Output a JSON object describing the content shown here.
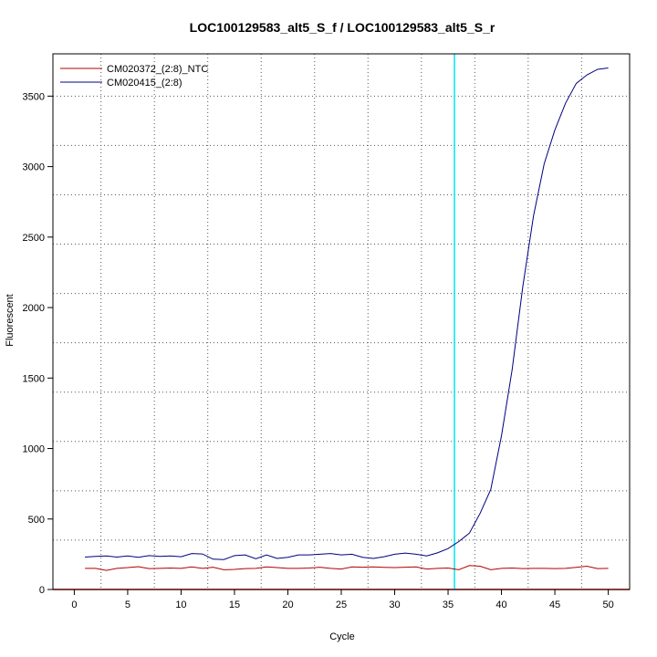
{
  "chart_data": {
    "type": "line",
    "title": "LOC100129583_alt5_S_f / LOC100129583_alt5_S_r",
    "xlabel": "Cycle",
    "ylabel": "Fluorescent",
    "xlim": [
      -2,
      52
    ],
    "ylim": [
      0,
      3800
    ],
    "x_ticks": [
      0,
      5,
      10,
      15,
      20,
      25,
      30,
      35,
      40,
      45,
      50
    ],
    "y_ticks": [
      0,
      500,
      1000,
      1500,
      2000,
      2500,
      3000,
      3500
    ],
    "x_grid": [
      2.5,
      7.5,
      12.5,
      17.5,
      22.5,
      27.5,
      32.5,
      37.5,
      42.5,
      47.5
    ],
    "y_grid": [
      350,
      700,
      1050,
      1400,
      1750,
      2100,
      2450,
      2800,
      3150,
      3500
    ],
    "grid": true,
    "legend_position": "top-left",
    "threshold": {
      "x": 35.6,
      "color": "#00e5ee"
    },
    "baseline": {
      "y": 0,
      "color": "#ff0000"
    },
    "x": [
      1,
      2,
      3,
      4,
      5,
      6,
      7,
      8,
      9,
      10,
      11,
      12,
      13,
      14,
      15,
      16,
      17,
      18,
      19,
      20,
      21,
      22,
      23,
      24,
      25,
      26,
      27,
      28,
      29,
      30,
      31,
      32,
      33,
      34,
      35,
      36,
      37,
      38,
      39,
      40,
      41,
      42,
      43,
      44,
      45,
      46,
      47,
      48,
      49,
      50
    ],
    "series": [
      {
        "name": "CM020372_(2:8)_NTC",
        "color": "#b30000",
        "values": [
          150,
          150,
          135,
          150,
          155,
          162,
          148,
          150,
          152,
          150,
          160,
          150,
          158,
          140,
          142,
          148,
          150,
          160,
          155,
          150,
          150,
          152,
          158,
          150,
          145,
          160,
          158,
          160,
          157,
          155,
          158,
          160,
          145,
          150,
          152,
          140,
          170,
          165,
          140,
          150,
          152,
          148,
          150,
          150,
          148,
          150,
          157,
          165,
          148,
          150
        ]
      },
      {
        "name": "CM020415_(2:8)",
        "color": "#000080",
        "values": [
          230,
          235,
          238,
          230,
          238,
          228,
          240,
          235,
          238,
          232,
          255,
          252,
          215,
          212,
          240,
          245,
          218,
          245,
          220,
          228,
          245,
          245,
          250,
          255,
          245,
          250,
          228,
          220,
          232,
          250,
          258,
          250,
          238,
          260,
          290,
          340,
          400,
          540,
          710,
          1090,
          1560,
          2150,
          2650,
          3020,
          3260,
          3450,
          3590,
          3650,
          3690,
          3700
        ]
      }
    ]
  }
}
